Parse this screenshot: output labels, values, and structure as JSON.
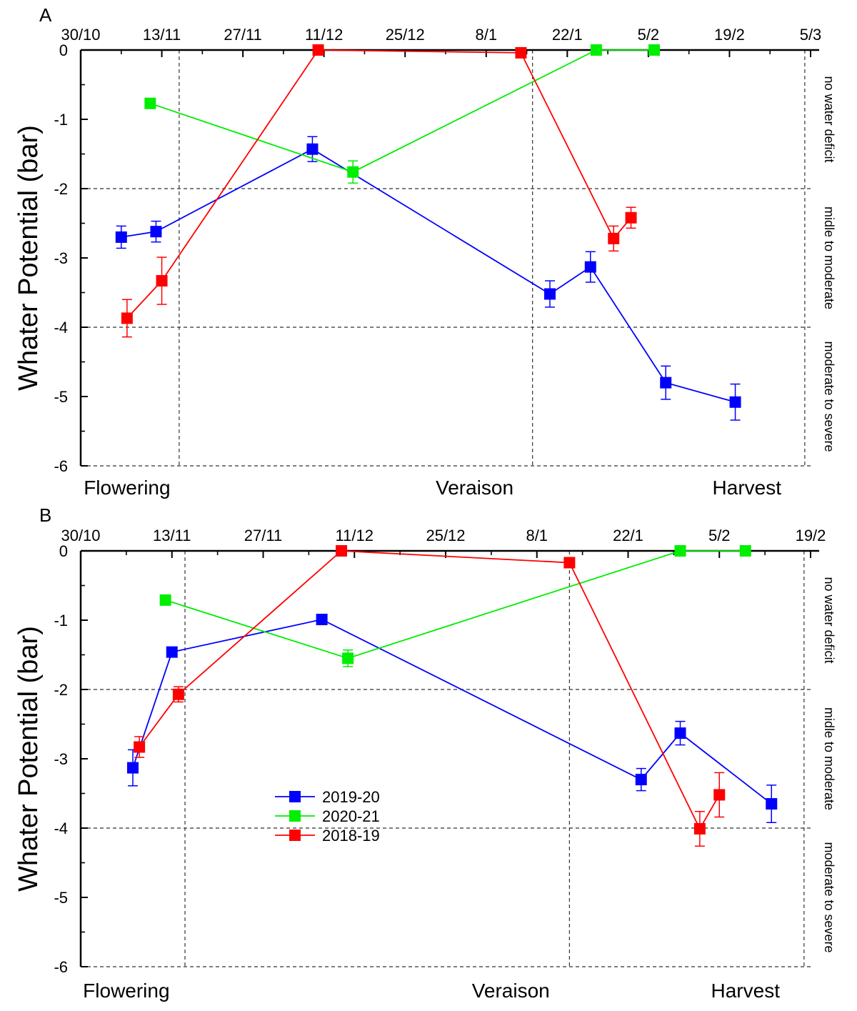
{
  "chart_data": [
    {
      "type": "line",
      "panel_label": "A",
      "ylabel": "Whater Potential (bar)",
      "ylim": [
        -6,
        0
      ],
      "yticks": [
        0,
        -1,
        -2,
        -3,
        -4,
        -5,
        -6
      ],
      "xlim_days": [
        0,
        126
      ],
      "x_tick_labels": [
        "30/10",
        "13/11",
        "27/11",
        "11/12",
        "25/12",
        "8/1",
        "22/1",
        "5/2",
        "19/2",
        "5/3"
      ],
      "x_tick_days": [
        0,
        14,
        28,
        42,
        56,
        70,
        84,
        98,
        112,
        126
      ],
      "phenology": [
        {
          "label": "Flowering",
          "day": 8,
          "line_day": 17
        },
        {
          "label": "Veraison",
          "day": 68,
          "line_day": 78
        },
        {
          "label": "Harvest",
          "day": 115,
          "line_day": 125
        }
      ],
      "thresholds": [
        -2,
        -4
      ],
      "zones": [
        "no water deficit",
        "midle to moderate",
        "moderate to severe"
      ],
      "series": [
        {
          "name": "2019-20",
          "color": "#0000ff",
          "x": [
            7,
            13,
            40,
            81,
            88,
            101,
            113
          ],
          "y": [
            -2.7,
            -2.62,
            -1.43,
            -3.52,
            -3.13,
            -4.8,
            -5.08
          ],
          "err": [
            0.16,
            0.15,
            0.18,
            0.19,
            0.22,
            0.24,
            0.26
          ]
        },
        {
          "name": "2020-21",
          "color": "#00ee00",
          "x": [
            12,
            47,
            89,
            99
          ],
          "y": [
            -0.77,
            -1.76,
            0,
            0
          ],
          "err": [
            0,
            0.16,
            0,
            0
          ]
        },
        {
          "name": "2018-19",
          "color": "#ff0000",
          "x": [
            8,
            14,
            41,
            76,
            92,
            95
          ],
          "y": [
            -3.87,
            -3.33,
            0,
            -0.04,
            -2.72,
            -2.42
          ],
          "err": [
            0.27,
            0.34,
            0,
            0,
            0.18,
            0.15
          ]
        }
      ]
    },
    {
      "type": "line",
      "panel_label": "B",
      "ylabel": "Whater Potential (bar)",
      "ylim": [
        -6,
        0
      ],
      "yticks": [
        0,
        -1,
        -2,
        -3,
        -4,
        -5,
        -6
      ],
      "xlim_days": [
        0,
        112
      ],
      "x_tick_labels": [
        "30/10",
        "13/11",
        "27/11",
        "11/12",
        "25/12",
        "8/1",
        "22/1",
        "5/2",
        "19/2"
      ],
      "x_tick_days": [
        0,
        14,
        28,
        42,
        56,
        70,
        84,
        98,
        112
      ],
      "phenology": [
        {
          "label": "Flowering",
          "day": 7,
          "line_day": 16
        },
        {
          "label": "Veraison",
          "day": 66,
          "line_day": 75
        },
        {
          "label": "Harvest",
          "day": 102,
          "line_day": 111
        }
      ],
      "thresholds": [
        -2,
        -4
      ],
      "zones": [
        "no water deficit",
        "midle to moderate",
        "moderate to severe"
      ],
      "series": [
        {
          "name": "2019-20",
          "color": "#0000ff",
          "x": [
            8,
            14,
            37,
            86,
            92,
            106
          ],
          "y": [
            -3.13,
            -1.46,
            -0.99,
            -3.3,
            -2.63,
            -3.65
          ],
          "err": [
            0.26,
            0,
            0,
            0.16,
            0.17,
            0.27
          ]
        },
        {
          "name": "2020-21",
          "color": "#00ee00",
          "x": [
            13,
            41,
            92,
            102
          ],
          "y": [
            -0.71,
            -1.55,
            0,
            0
          ],
          "err": [
            0,
            0.12,
            0,
            0
          ]
        },
        {
          "name": "2018-19",
          "color": "#ff0000",
          "x": [
            9,
            15,
            40,
            75,
            95,
            98
          ],
          "y": [
            -2.83,
            -2.07,
            0,
            -0.17,
            -4.01,
            -3.52
          ],
          "err": [
            0.15,
            0.11,
            0,
            0,
            0.25,
            0.32
          ]
        }
      ],
      "legend": {
        "placement": "bottom-left",
        "entries": [
          "2019-20",
          "2020-21",
          "2018-19"
        ]
      }
    }
  ]
}
